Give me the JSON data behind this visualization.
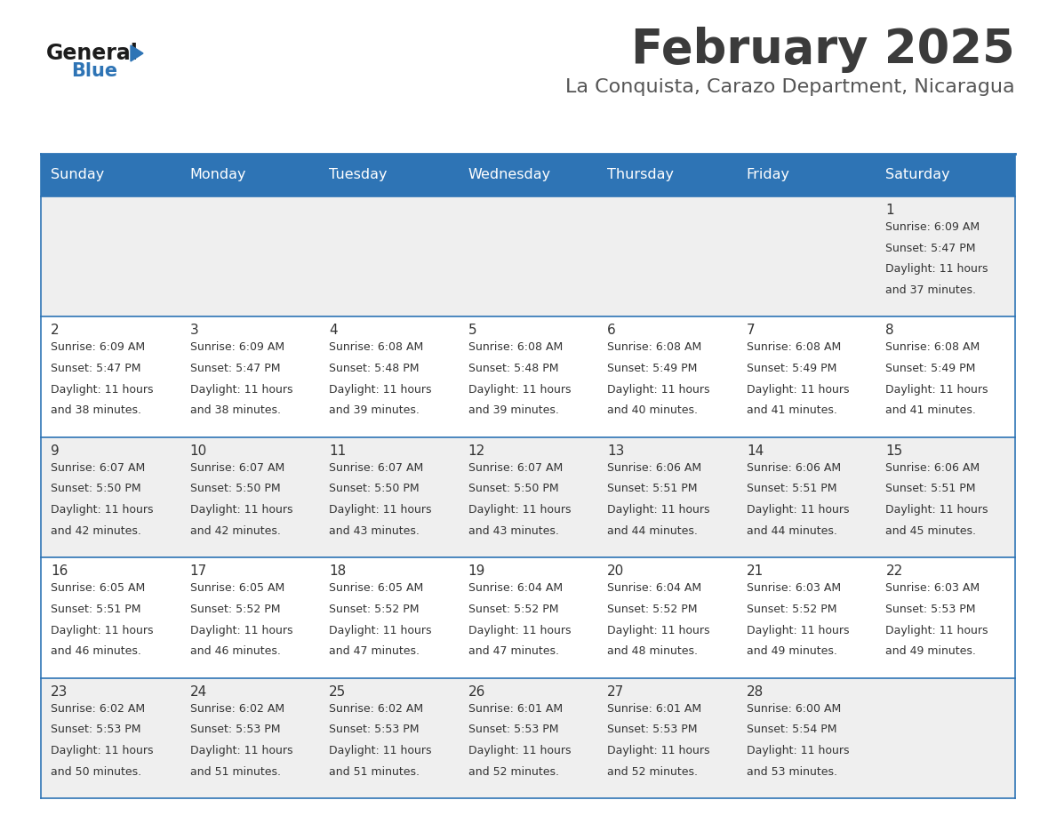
{
  "title": "February 2025",
  "subtitle": "La Conquista, Carazo Department, Nicaragua",
  "header_bg": "#2E74B5",
  "header_text_color": "#FFFFFF",
  "cell_bg_odd": "#EFEFEF",
  "cell_bg_even": "#FFFFFF",
  "title_color": "#3B3B3B",
  "subtitle_color": "#555555",
  "text_color": "#333333",
  "line_color": "#2E74B5",
  "days_of_week": [
    "Sunday",
    "Monday",
    "Tuesday",
    "Wednesday",
    "Thursday",
    "Friday",
    "Saturday"
  ],
  "weeks": [
    [
      0,
      0,
      0,
      0,
      0,
      0,
      1
    ],
    [
      2,
      3,
      4,
      5,
      6,
      7,
      8
    ],
    [
      9,
      10,
      11,
      12,
      13,
      14,
      15
    ],
    [
      16,
      17,
      18,
      19,
      20,
      21,
      22
    ],
    [
      23,
      24,
      25,
      26,
      27,
      28,
      0
    ]
  ],
  "day_data": {
    "1": {
      "sunrise": "6:09 AM",
      "sunset": "5:47 PM",
      "daylight_h": "11 hours",
      "daylight_m": "37 minutes"
    },
    "2": {
      "sunrise": "6:09 AM",
      "sunset": "5:47 PM",
      "daylight_h": "11 hours",
      "daylight_m": "38 minutes"
    },
    "3": {
      "sunrise": "6:09 AM",
      "sunset": "5:47 PM",
      "daylight_h": "11 hours",
      "daylight_m": "38 minutes"
    },
    "4": {
      "sunrise": "6:08 AM",
      "sunset": "5:48 PM",
      "daylight_h": "11 hours",
      "daylight_m": "39 minutes"
    },
    "5": {
      "sunrise": "6:08 AM",
      "sunset": "5:48 PM",
      "daylight_h": "11 hours",
      "daylight_m": "39 minutes"
    },
    "6": {
      "sunrise": "6:08 AM",
      "sunset": "5:49 PM",
      "daylight_h": "11 hours",
      "daylight_m": "40 minutes"
    },
    "7": {
      "sunrise": "6:08 AM",
      "sunset": "5:49 PM",
      "daylight_h": "11 hours",
      "daylight_m": "41 minutes"
    },
    "8": {
      "sunrise": "6:08 AM",
      "sunset": "5:49 PM",
      "daylight_h": "11 hours",
      "daylight_m": "41 minutes"
    },
    "9": {
      "sunrise": "6:07 AM",
      "sunset": "5:50 PM",
      "daylight_h": "11 hours",
      "daylight_m": "42 minutes"
    },
    "10": {
      "sunrise": "6:07 AM",
      "sunset": "5:50 PM",
      "daylight_h": "11 hours",
      "daylight_m": "42 minutes"
    },
    "11": {
      "sunrise": "6:07 AM",
      "sunset": "5:50 PM",
      "daylight_h": "11 hours",
      "daylight_m": "43 minutes"
    },
    "12": {
      "sunrise": "6:07 AM",
      "sunset": "5:50 PM",
      "daylight_h": "11 hours",
      "daylight_m": "43 minutes"
    },
    "13": {
      "sunrise": "6:06 AM",
      "sunset": "5:51 PM",
      "daylight_h": "11 hours",
      "daylight_m": "44 minutes"
    },
    "14": {
      "sunrise": "6:06 AM",
      "sunset": "5:51 PM",
      "daylight_h": "11 hours",
      "daylight_m": "44 minutes"
    },
    "15": {
      "sunrise": "6:06 AM",
      "sunset": "5:51 PM",
      "daylight_h": "11 hours",
      "daylight_m": "45 minutes"
    },
    "16": {
      "sunrise": "6:05 AM",
      "sunset": "5:51 PM",
      "daylight_h": "11 hours",
      "daylight_m": "46 minutes"
    },
    "17": {
      "sunrise": "6:05 AM",
      "sunset": "5:52 PM",
      "daylight_h": "11 hours",
      "daylight_m": "46 minutes"
    },
    "18": {
      "sunrise": "6:05 AM",
      "sunset": "5:52 PM",
      "daylight_h": "11 hours",
      "daylight_m": "47 minutes"
    },
    "19": {
      "sunrise": "6:04 AM",
      "sunset": "5:52 PM",
      "daylight_h": "11 hours",
      "daylight_m": "47 minutes"
    },
    "20": {
      "sunrise": "6:04 AM",
      "sunset": "5:52 PM",
      "daylight_h": "11 hours",
      "daylight_m": "48 minutes"
    },
    "21": {
      "sunrise": "6:03 AM",
      "sunset": "5:52 PM",
      "daylight_h": "11 hours",
      "daylight_m": "49 minutes"
    },
    "22": {
      "sunrise": "6:03 AM",
      "sunset": "5:53 PM",
      "daylight_h": "11 hours",
      "daylight_m": "49 minutes"
    },
    "23": {
      "sunrise": "6:02 AM",
      "sunset": "5:53 PM",
      "daylight_h": "11 hours",
      "daylight_m": "50 minutes"
    },
    "24": {
      "sunrise": "6:02 AM",
      "sunset": "5:53 PM",
      "daylight_h": "11 hours",
      "daylight_m": "51 minutes"
    },
    "25": {
      "sunrise": "6:02 AM",
      "sunset": "5:53 PM",
      "daylight_h": "11 hours",
      "daylight_m": "51 minutes"
    },
    "26": {
      "sunrise": "6:01 AM",
      "sunset": "5:53 PM",
      "daylight_h": "11 hours",
      "daylight_m": "52 minutes"
    },
    "27": {
      "sunrise": "6:01 AM",
      "sunset": "5:53 PM",
      "daylight_h": "11 hours",
      "daylight_m": "52 minutes"
    },
    "28": {
      "sunrise": "6:00 AM",
      "sunset": "5:54 PM",
      "daylight_h": "11 hours",
      "daylight_m": "53 minutes"
    }
  }
}
